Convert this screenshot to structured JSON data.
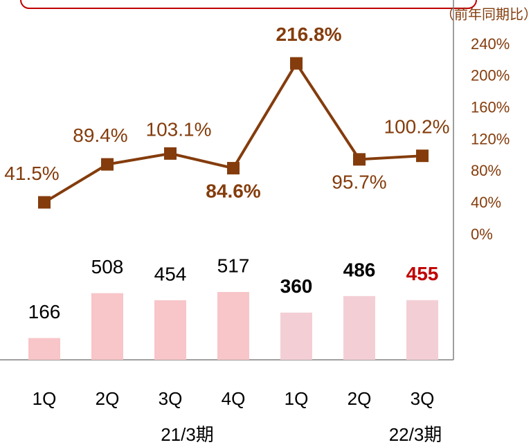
{
  "chart_data": {
    "type": "bar_line",
    "categories": [
      "1Q",
      "2Q",
      "3Q",
      "4Q",
      "1Q",
      "2Q",
      "3Q"
    ],
    "groups": [
      {
        "label": "21/3期",
        "from": 0,
        "to": 3
      },
      {
        "label": "22/3期",
        "from": 4,
        "to": 6
      }
    ],
    "series": [
      {
        "type": "bar",
        "values": [
          166,
          508,
          454,
          517,
          360,
          486,
          455
        ],
        "colors": [
          "#f8c5c8",
          "#f8c5c8",
          "#f8c5c8",
          "#f8c5c8",
          "#f3cfd5",
          "#f3cfd5",
          "#f3cfd5"
        ],
        "label_colors": [
          "#000000",
          "#000000",
          "#000000",
          "#000000",
          "#000000",
          "#000000",
          "#c00000"
        ],
        "label_bold": [
          false,
          false,
          false,
          false,
          true,
          true,
          true
        ]
      },
      {
        "type": "line",
        "axis": "y2",
        "color": "#843c0c",
        "values": [
          41.5,
          89.4,
          103.1,
          84.6,
          216.8,
          95.7,
          100.2
        ],
        "value_labels": [
          "41.5%",
          "89.4%",
          "103.1%",
          "84.6%",
          "216.8%",
          "95.7%",
          "100.2%"
        ],
        "label_bold": [
          false,
          false,
          false,
          true,
          true,
          false,
          false
        ]
      }
    ],
    "ylim": [
      0,
      2400
    ],
    "y2label": "（前年同期比）",
    "y2lim": [
      0,
      240
    ],
    "y2ticks": [
      {
        "value": 0,
        "label": "0%"
      },
      {
        "value": 40,
        "label": "40%"
      },
      {
        "value": 80,
        "label": "80%"
      },
      {
        "value": 120,
        "label": "120%"
      },
      {
        "value": 160,
        "label": "160%"
      },
      {
        "value": 200,
        "label": "200%"
      },
      {
        "value": 240,
        "label": "240%"
      }
    ]
  }
}
